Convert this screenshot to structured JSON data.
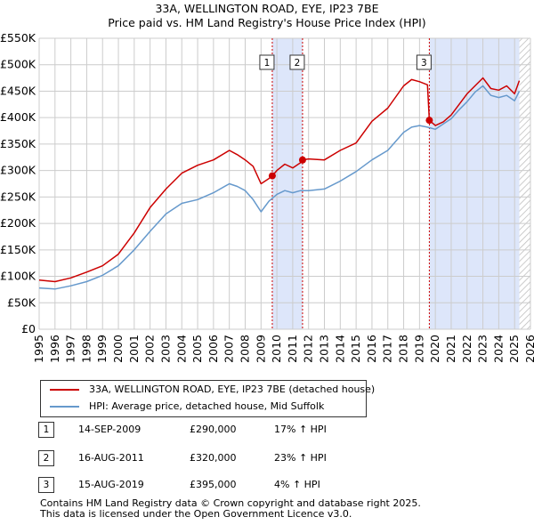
{
  "title": {
    "line1": "33A, WELLINGTON ROAD, EYE, IP23 7BE",
    "line2": "Price paid vs. HM Land Registry's House Price Index (HPI)"
  },
  "colors": {
    "property": "#cc0000",
    "hpi": "#6699cc",
    "shade": "#dde6fa",
    "grid": "#cccccc",
    "marker_line": "#cc0000"
  },
  "chart_data": {
    "type": "line",
    "xlabel": "",
    "ylabel": "",
    "xlim": [
      1995,
      2026
    ],
    "ylim": [
      0,
      550000
    ],
    "y_ticks": [
      0,
      50000,
      100000,
      150000,
      200000,
      250000,
      300000,
      350000,
      400000,
      450000,
      500000,
      550000
    ],
    "y_tick_labels": [
      "£0",
      "£50K",
      "£100K",
      "£150K",
      "£200K",
      "£250K",
      "£300K",
      "£350K",
      "£400K",
      "£450K",
      "£500K",
      "£550K"
    ],
    "x_ticks": [
      1995,
      1996,
      1997,
      1998,
      1999,
      2000,
      2001,
      2002,
      2003,
      2004,
      2005,
      2006,
      2007,
      2008,
      2009,
      2010,
      2011,
      2012,
      2013,
      2014,
      2015,
      2016,
      2017,
      2018,
      2019,
      2020,
      2021,
      2022,
      2023,
      2024,
      2025,
      2026
    ],
    "x_tick_labels": [
      "1995",
      "1996",
      "1997",
      "1998",
      "1999",
      "2000",
      "2001",
      "2002",
      "2003",
      "2004",
      "2005",
      "2006",
      "2007",
      "2008",
      "2009",
      "2010",
      "2011",
      "2012",
      "2013",
      "2014",
      "2015",
      "2016",
      "2017",
      "2018",
      "2019",
      "2020",
      "2021",
      "2022",
      "2023",
      "2024",
      "2025",
      "2026"
    ],
    "grid": true,
    "shaded_ranges": [
      [
        2009.71,
        2011.62
      ],
      [
        2019.62,
        2026
      ]
    ],
    "hatched_range": [
      2025.3,
      2026
    ],
    "series": [
      {
        "name": "33A, WELLINGTON ROAD, EYE, IP23 7BE (detached house)",
        "x": [
          1995.0,
          1996.0,
          1997.0,
          1998.0,
          1999.0,
          2000.0,
          2001.0,
          2002.0,
          2003.0,
          2004.0,
          2005.0,
          2006.0,
          2007.0,
          2007.5,
          2008.0,
          2008.5,
          2009.0,
          2009.5,
          2009.71,
          2010.0,
          2010.5,
          2011.0,
          2011.5,
          2011.62,
          2012.0,
          2013.0,
          2014.0,
          2015.0,
          2016.0,
          2017.0,
          2018.0,
          2018.5,
          2019.0,
          2019.5,
          2019.62,
          2020.0,
          2020.5,
          2021.0,
          2021.5,
          2022.0,
          2022.5,
          2023.0,
          2023.5,
          2024.0,
          2024.5,
          2025.0,
          2025.3
        ],
        "y": [
          93000,
          90000,
          97000,
          108000,
          120000,
          142000,
          182000,
          230000,
          265000,
          295000,
          310000,
          320000,
          338000,
          330000,
          320000,
          308000,
          275000,
          285000,
          290000,
          300000,
          312000,
          305000,
          315000,
          320000,
          322000,
          320000,
          338000,
          352000,
          393000,
          418000,
          460000,
          472000,
          468000,
          462000,
          395000,
          385000,
          392000,
          405000,
          425000,
          445000,
          460000,
          475000,
          455000,
          452000,
          460000,
          445000,
          470000
        ]
      },
      {
        "name": "HPI: Average price, detached house, Mid Suffolk",
        "x": [
          1995.0,
          1996.0,
          1997.0,
          1998.0,
          1999.0,
          2000.0,
          2001.0,
          2002.0,
          2003.0,
          2004.0,
          2005.0,
          2006.0,
          2007.0,
          2007.5,
          2008.0,
          2008.5,
          2009.0,
          2009.5,
          2010.0,
          2010.5,
          2011.0,
          2011.5,
          2012.0,
          2013.0,
          2014.0,
          2015.0,
          2016.0,
          2017.0,
          2018.0,
          2018.5,
          2019.0,
          2019.5,
          2020.0,
          2020.5,
          2021.0,
          2021.5,
          2022.0,
          2022.5,
          2023.0,
          2023.5,
          2024.0,
          2024.5,
          2025.0,
          2025.3
        ],
        "y": [
          78000,
          76000,
          82000,
          90000,
          102000,
          120000,
          150000,
          185000,
          218000,
          238000,
          245000,
          258000,
          275000,
          270000,
          262000,
          245000,
          222000,
          242000,
          255000,
          262000,
          258000,
          262000,
          262000,
          265000,
          280000,
          298000,
          320000,
          338000,
          372000,
          382000,
          385000,
          382000,
          378000,
          388000,
          398000,
          415000,
          430000,
          448000,
          460000,
          442000,
          438000,
          442000,
          432000,
          450000
        ]
      }
    ],
    "sales": [
      {
        "label": "1",
        "x": 2009.71,
        "y": 290000
      },
      {
        "label": "2",
        "x": 2011.62,
        "y": 320000
      },
      {
        "label": "3",
        "x": 2019.62,
        "y": 395000
      }
    ]
  },
  "legend": {
    "property_label": "33A, WELLINGTON ROAD, EYE, IP23 7BE (detached house)",
    "hpi_label": "HPI: Average price, detached house, Mid Suffolk"
  },
  "transactions": [
    {
      "num": "1",
      "date": "14-SEP-2009",
      "price": "£290,000",
      "hpi": "17% ↑ HPI"
    },
    {
      "num": "2",
      "date": "16-AUG-2011",
      "price": "£320,000",
      "hpi": "23% ↑ HPI"
    },
    {
      "num": "3",
      "date": "15-AUG-2019",
      "price": "£395,000",
      "hpi": "4% ↑ HPI"
    }
  ],
  "footer": {
    "line1": "Contains HM Land Registry data © Crown copyright and database right 2025.",
    "line2": "This data is licensed under the Open Government Licence v3.0."
  }
}
